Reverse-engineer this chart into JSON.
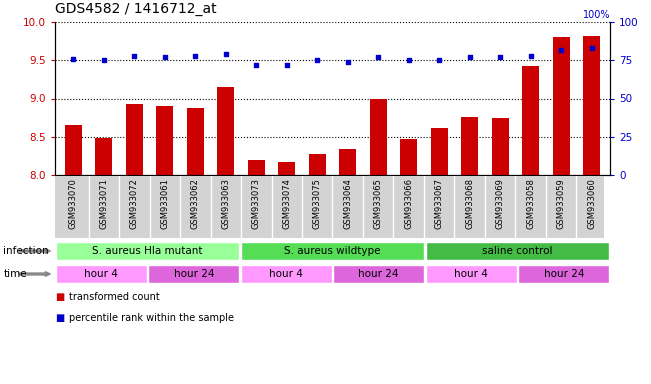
{
  "title": "GDS4582 / 1416712_at",
  "samples": [
    "GSM933070",
    "GSM933071",
    "GSM933072",
    "GSM933061",
    "GSM933062",
    "GSM933063",
    "GSM933073",
    "GSM933074",
    "GSM933075",
    "GSM933064",
    "GSM933065",
    "GSM933066",
    "GSM933067",
    "GSM933068",
    "GSM933069",
    "GSM933058",
    "GSM933059",
    "GSM933060"
  ],
  "bar_values": [
    8.65,
    8.48,
    8.93,
    8.9,
    8.87,
    9.15,
    8.2,
    8.17,
    8.28,
    8.34,
    8.99,
    8.47,
    8.62,
    8.76,
    8.75,
    9.43,
    9.8,
    9.82
  ],
  "dot_values": [
    76,
    75,
    78,
    77,
    78,
    79,
    72,
    72,
    75,
    74,
    77,
    75,
    75,
    77,
    77,
    78,
    82,
    83
  ],
  "ylim_left": [
    8.0,
    10.0
  ],
  "ylim_right": [
    0,
    100
  ],
  "yticks_left": [
    8.0,
    8.5,
    9.0,
    9.5,
    10.0
  ],
  "yticks_right": [
    0,
    25,
    50,
    75,
    100
  ],
  "bar_color": "#cc0000",
  "dot_color": "#0000cc",
  "infection_groups": [
    {
      "label": "S. aureus Hla mutant",
      "start": 0,
      "end": 6,
      "color": "#99ff99"
    },
    {
      "label": "S. aureus wildtype",
      "start": 6,
      "end": 12,
      "color": "#55dd55"
    },
    {
      "label": "saline control",
      "start": 12,
      "end": 18,
      "color": "#44bb44"
    }
  ],
  "time_groups": [
    {
      "label": "hour 4",
      "start": 0,
      "end": 3,
      "color": "#ff99ff"
    },
    {
      "label": "hour 24",
      "start": 3,
      "end": 6,
      "color": "#dd66dd"
    },
    {
      "label": "hour 4",
      "start": 6,
      "end": 9,
      "color": "#ff99ff"
    },
    {
      "label": "hour 24",
      "start": 9,
      "end": 12,
      "color": "#dd66dd"
    },
    {
      "label": "hour 4",
      "start": 12,
      "end": 15,
      "color": "#ff99ff"
    },
    {
      "label": "hour 24",
      "start": 15,
      "end": 18,
      "color": "#dd66dd"
    }
  ],
  "legend_items": [
    {
      "label": "transformed count",
      "color": "#cc0000"
    },
    {
      "label": "percentile rank within the sample",
      "color": "#0000cc"
    }
  ],
  "infection_label": "infection",
  "time_label": "time",
  "tick_label_color_left": "#cc0000",
  "tick_label_color_right": "#0000cc",
  "sample_bg_color": "#d3d3d3"
}
